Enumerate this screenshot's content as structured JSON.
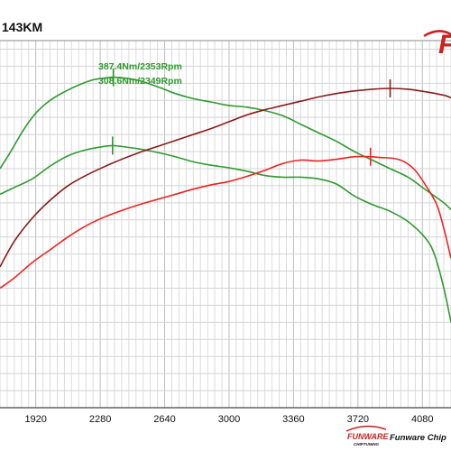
{
  "chart_data": {
    "type": "line",
    "title": "143KM",
    "xlim": [
      1720,
      4240
    ],
    "ylim": [
      0,
      430
    ],
    "x_ticks": [
      1920,
      2280,
      2640,
      3000,
      3360,
      3720,
      4080
    ],
    "x_tick_labels": [
      "1920",
      "2280",
      "2640",
      "3000",
      "3360",
      "3720",
      "4080"
    ],
    "grid": true,
    "series": [
      {
        "color": "#2e9a2e",
        "marker": [
          2353,
          387.4
        ],
        "x": [
          1720,
          1780,
          1850,
          1920,
          2000,
          2080,
          2160,
          2240,
          2300,
          2353,
          2420,
          2500,
          2600,
          2700,
          2800,
          2900,
          3000,
          3100,
          3200,
          3300,
          3400,
          3500,
          3600,
          3700,
          3800,
          3900,
          4000,
          4100,
          4200,
          4240
        ],
        "y": [
          280,
          300,
          325,
          345,
          360,
          370,
          378,
          384,
          386,
          387,
          386,
          383,
          376,
          368,
          362,
          358,
          354,
          352,
          348,
          342,
          332,
          322,
          312,
          300,
          290,
          280,
          270,
          255,
          240,
          232
        ]
      },
      {
        "color": "#2e9a2e",
        "marker": [
          2349,
          308.6
        ],
        "x": [
          1720,
          1800,
          1900,
          2000,
          2100,
          2200,
          2300,
          2349,
          2400,
          2500,
          2600,
          2700,
          2800,
          2900,
          3000,
          3100,
          3200,
          3300,
          3400,
          3500,
          3600,
          3700,
          3800,
          3900,
          4000,
          4100,
          4150,
          4200,
          4240
        ],
        "y": [
          250,
          258,
          268,
          283,
          295,
          302,
          306,
          307,
          306,
          303,
          299,
          294,
          288,
          284,
          281,
          277,
          272,
          270,
          270,
          268,
          262,
          248,
          238,
          230,
          218,
          198,
          178,
          140,
          100
        ]
      },
      {
        "color": "#8b1a1a",
        "marker": [
          3900,
          0
        ],
        "x": [
          1720,
          1800,
          1900,
          2000,
          2100,
          2200,
          2300,
          2400,
          2500,
          2600,
          2700,
          2800,
          2900,
          3000,
          3100,
          3200,
          3300,
          3400,
          3500,
          3600,
          3700,
          3800,
          3900,
          4000,
          4100,
          4200,
          4240
        ],
        "y": [
          165,
          195,
          222,
          243,
          260,
          272,
          282,
          291,
          299,
          306,
          313,
          320,
          327,
          335,
          343,
          349,
          354,
          359,
          364,
          368,
          371,
          373,
          374,
          373,
          370,
          366,
          363
        ]
      },
      {
        "color": "#ee2222",
        "marker": [
          3790,
          0
        ],
        "x": [
          1720,
          1800,
          1900,
          2000,
          2100,
          2200,
          2300,
          2400,
          2500,
          2600,
          2700,
          2800,
          2900,
          3000,
          3100,
          3200,
          3300,
          3400,
          3500,
          3600,
          3700,
          3790,
          3850,
          3920,
          3980,
          4040,
          4100,
          4160,
          4200,
          4240
        ],
        "y": [
          140,
          152,
          170,
          185,
          200,
          213,
          223,
          231,
          238,
          244,
          250,
          256,
          261,
          265,
          271,
          278,
          286,
          290,
          289,
          291,
          294,
          294,
          293,
          292,
          288,
          278,
          260,
          238,
          210,
          175
        ]
      }
    ],
    "annotations": [
      {
        "text": "387.4Nm/2353Rpm"
      },
      {
        "text": "308.6Nm/2349Rpm"
      }
    ]
  },
  "watermark": {
    "top_logo_letter": "F",
    "bottom_logo_text": "FUNWARE",
    "bottom_logo_sub": "CHIPTUNING",
    "brand_text": "Funware Chip",
    "color": "#cc1f1f"
  }
}
